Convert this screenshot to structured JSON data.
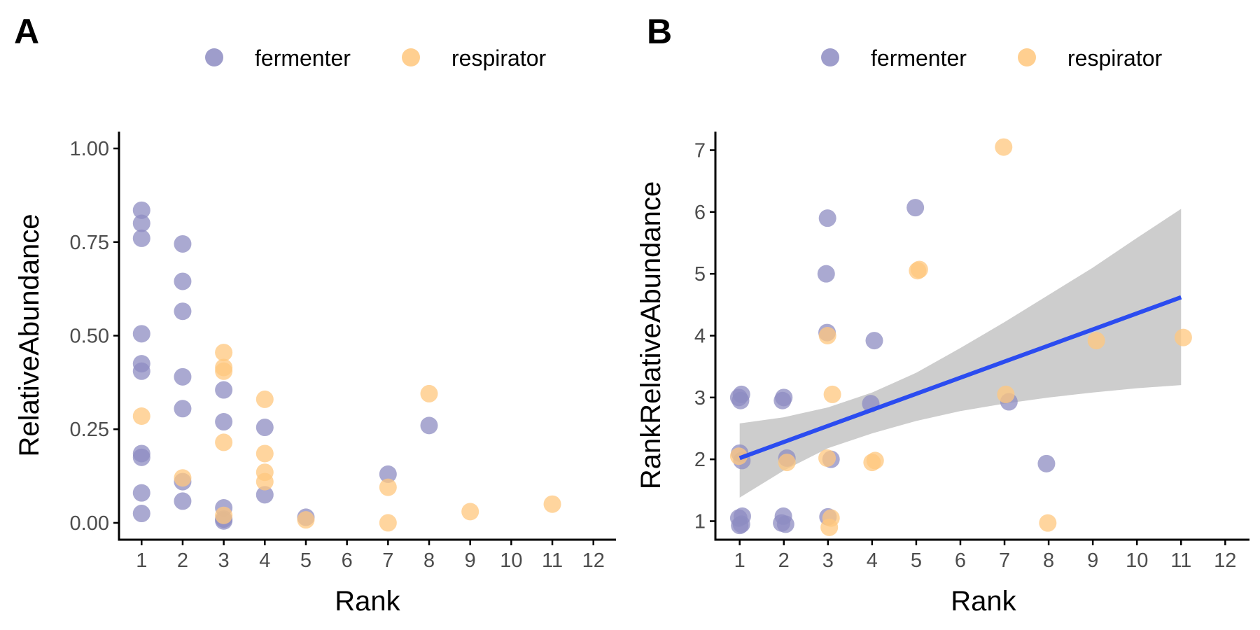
{
  "colors": {
    "fermenter": "#8d8cc2",
    "respirator": "#ffc77d",
    "fit_line": "#2b4cf0",
    "ribbon": "#c8c8c8",
    "axis": "#000000",
    "tick_label": "#4d4d4d"
  },
  "chart_data": [
    {
      "type": "scatter",
      "panel": "A",
      "title": "",
      "xlabel": "Rank",
      "ylabel": "RelativeAbundance",
      "xlim": [
        0.45,
        12.55
      ],
      "ylim": [
        -0.045,
        1.045
      ],
      "x_ticks": [
        1,
        2,
        3,
        4,
        5,
        6,
        7,
        8,
        9,
        10,
        11,
        12
      ],
      "x_tick_labels": [
        "1",
        "2",
        "3",
        "4",
        "5",
        "6",
        "7",
        "8",
        "9",
        "10",
        "11",
        "12"
      ],
      "y_ticks": [
        0,
        0.25,
        0.5,
        0.75,
        1.0
      ],
      "y_tick_labels": [
        "0.00",
        "0.25",
        "0.50",
        "0.75",
        "1.00"
      ],
      "legend": {
        "position": "top",
        "entries": [
          "fermenter",
          "respirator"
        ]
      },
      "series": [
        {
          "name": "fermenter",
          "points": [
            [
              1,
              0.835
            ],
            [
              1,
              0.8
            ],
            [
              1,
              0.76
            ],
            [
              1,
              0.505
            ],
            [
              1,
              0.425
            ],
            [
              1,
              0.405
            ],
            [
              1,
              0.185
            ],
            [
              1,
              0.175
            ],
            [
              1,
              0.08
            ],
            [
              1,
              0.025
            ],
            [
              2,
              0.745
            ],
            [
              2,
              0.645
            ],
            [
              2,
              0.565
            ],
            [
              2,
              0.39
            ],
            [
              2,
              0.305
            ],
            [
              2,
              0.11
            ],
            [
              2,
              0.058
            ],
            [
              3,
              0.355
            ],
            [
              3,
              0.27
            ],
            [
              3,
              0.04
            ],
            [
              3,
              0.01
            ],
            [
              3,
              0.005
            ],
            [
              4,
              0.255
            ],
            [
              4,
              0.075
            ],
            [
              5,
              0.015
            ],
            [
              7,
              0.13
            ],
            [
              8,
              0.26
            ]
          ]
        },
        {
          "name": "respirator",
          "points": [
            [
              1,
              0.285
            ],
            [
              2,
              0.12
            ],
            [
              3,
              0.455
            ],
            [
              3,
              0.415
            ],
            [
              3,
              0.405
            ],
            [
              3,
              0.215
            ],
            [
              3,
              0.02
            ],
            [
              4,
              0.33
            ],
            [
              4,
              0.185
            ],
            [
              4,
              0.135
            ],
            [
              4,
              0.11
            ],
            [
              5,
              0.008
            ],
            [
              7,
              0.095
            ],
            [
              7,
              0.0
            ],
            [
              8,
              0.345
            ],
            [
              9,
              0.03
            ],
            [
              11,
              0.05
            ]
          ]
        }
      ]
    },
    {
      "type": "scatter",
      "panel": "B",
      "title": "",
      "xlabel": "Rank",
      "ylabel": "RankRelativeAbundance",
      "xlim": [
        0.45,
        12.55
      ],
      "ylim": [
        0.7,
        7.3
      ],
      "x_ticks": [
        1,
        2,
        3,
        4,
        5,
        6,
        7,
        8,
        9,
        10,
        11,
        12
      ],
      "x_tick_labels": [
        "1",
        "2",
        "3",
        "4",
        "5",
        "6",
        "7",
        "8",
        "9",
        "10",
        "11",
        "12"
      ],
      "y_ticks": [
        1,
        2,
        3,
        4,
        5,
        6,
        7
      ],
      "y_tick_labels": [
        "1",
        "2",
        "3",
        "4",
        "5",
        "6",
        "7"
      ],
      "legend": {
        "position": "top",
        "entries": [
          "fermenter",
          "respirator"
        ]
      },
      "series": [
        {
          "name": "fermenter",
          "points": [
            [
              0.98,
              3.0
            ],
            [
              1.04,
              3.05
            ],
            [
              1.02,
              2.95
            ],
            [
              1.0,
              2.1
            ],
            [
              1.05,
              1.98
            ],
            [
              0.98,
              1.05
            ],
            [
              1.06,
              1.08
            ],
            [
              1.0,
              0.93
            ],
            [
              1.04,
              0.95
            ],
            [
              1.97,
              2.95
            ],
            [
              2.0,
              3.0
            ],
            [
              2.07,
              2.02
            ],
            [
              1.99,
              1.08
            ],
            [
              2.04,
              0.95
            ],
            [
              1.95,
              0.97
            ],
            [
              2.96,
              5.0
            ],
            [
              2.99,
              5.9
            ],
            [
              2.98,
              4.05
            ],
            [
              3.07,
              2.0
            ],
            [
              3.0,
              1.07
            ],
            [
              4.05,
              3.92
            ],
            [
              3.97,
              2.9
            ],
            [
              4.98,
              6.07
            ],
            [
              7.1,
              2.93
            ],
            [
              7.95,
              1.93
            ]
          ]
        },
        {
          "name": "respirator",
          "points": [
            [
              0.98,
              2.05
            ],
            [
              2.07,
              1.95
            ],
            [
              2.99,
              4.0
            ],
            [
              3.1,
              3.05
            ],
            [
              2.98,
              2.02
            ],
            [
              3.07,
              1.05
            ],
            [
              3.03,
              0.9
            ],
            [
              4.0,
              1.95
            ],
            [
              4.07,
              1.98
            ],
            [
              5.03,
              5.05
            ],
            [
              5.07,
              5.07
            ],
            [
              6.98,
              7.05
            ],
            [
              7.03,
              3.05
            ],
            [
              7.98,
              0.97
            ],
            [
              9.08,
              3.92
            ],
            [
              11.05,
              3.97
            ]
          ]
        }
      ],
      "fit": {
        "type": "linear",
        "x": [
          1.0,
          2.0,
          3.0,
          4.0,
          5.0,
          6.0,
          7.0,
          8.0,
          9.0,
          10.0,
          11.0
        ],
        "y": [
          2.02,
          2.28,
          2.54,
          2.8,
          3.06,
          3.32,
          3.58,
          3.84,
          4.1,
          4.36,
          4.62
        ],
        "ci_low": [
          1.38,
          1.82,
          2.18,
          2.42,
          2.62,
          2.78,
          2.9,
          3.0,
          3.08,
          3.15,
          3.2
        ],
        "ci_high": [
          2.58,
          2.68,
          2.84,
          3.08,
          3.4,
          3.8,
          4.22,
          4.66,
          5.1,
          5.58,
          6.05
        ]
      }
    }
  ]
}
